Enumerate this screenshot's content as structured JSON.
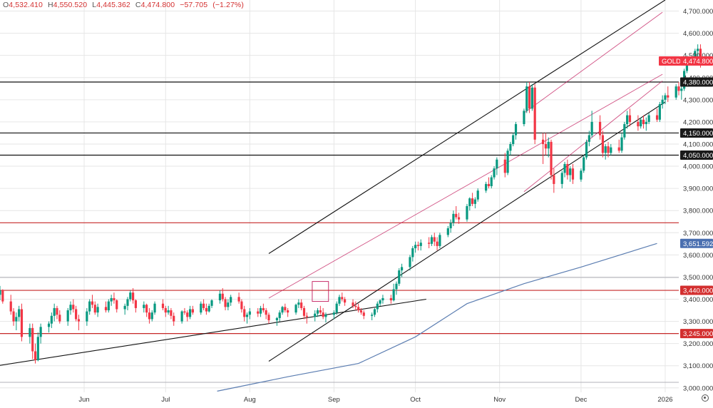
{
  "header": {
    "open_label": "O",
    "open": "4,532.410",
    "high_label": "H",
    "high": "4,550.520",
    "low_label": "L",
    "low": "4,445.362",
    "close_label": "C",
    "close": "4,474.800",
    "change": "−57.705",
    "change_pct": "(−1.27%)"
  },
  "colors": {
    "up": "#089981",
    "down": "#f23645",
    "trend": "#111111",
    "channel": "#c2185b",
    "red_level": "#c62828",
    "black_level": "#111111",
    "ma": "#5b7db1",
    "grid": "#e6e6e6"
  },
  "chart_data": {
    "type": "candlestick",
    "symbol": "GOLD",
    "last_price": 4474.8,
    "last_price_label": "4,474.800",
    "ylim": [
      2980,
      4750
    ],
    "y_ticks": [
      3000,
      3100,
      3200,
      3300,
      3400,
      3500,
      3600,
      3700,
      3800,
      3900,
      4000,
      4100,
      4200,
      4300,
      4400,
      4500,
      4600,
      4700
    ],
    "y_tick_labels": [
      "3,000.000",
      "3,100.000",
      "3,200.000",
      "3,300.000",
      "3,400.000",
      "3,500.000",
      "3,600.000",
      "3,700.000",
      "3,800.000",
      "3,900.000",
      "4,000.000",
      "4,100.000",
      "4,200.000",
      "4,300.000",
      "4,400.000",
      "4,500.000",
      "4,600.000",
      "4,700.000"
    ],
    "x_range": [
      "2025-05-01",
      "2026-01-06"
    ],
    "x_ticks": [
      {
        "label": "Jun",
        "date": "2025-06-01"
      },
      {
        "label": "Jul",
        "date": "2025-07-01"
      },
      {
        "label": "Aug",
        "date": "2025-08-01"
      },
      {
        "label": "Sep",
        "date": "2025-09-01"
      },
      {
        "label": "Oct",
        "date": "2025-10-01"
      },
      {
        "label": "Nov",
        "date": "2025-11-01"
      },
      {
        "label": "Dec",
        "date": "2025-12-01"
      },
      {
        "label": "2026",
        "date": "2026-01-01"
      }
    ],
    "levels": [
      {
        "price": 4380,
        "label": "4,380.000",
        "color": "black"
      },
      {
        "price": 4150,
        "label": "4,150.000",
        "color": "black"
      },
      {
        "price": 4050,
        "label": "4,050.000",
        "color": "black"
      },
      {
        "price": 3745,
        "label": "",
        "color": "red"
      },
      {
        "price": 3498,
        "label": "",
        "color": "gray"
      },
      {
        "price": 3440,
        "label": "3,440.000",
        "color": "red"
      },
      {
        "price": 3245,
        "label": "3,245.000",
        "color": "red"
      },
      {
        "price": 3025,
        "label": "",
        "color": "gray"
      }
    ],
    "ma_label": "3,651.592",
    "ma_points": [
      [
        "2025-07-20",
        2985
      ],
      [
        "2025-08-15",
        3050
      ],
      [
        "2025-09-10",
        3110
      ],
      [
        "2025-10-01",
        3230
      ],
      [
        "2025-10-20",
        3380
      ],
      [
        "2025-11-10",
        3470
      ],
      [
        "2025-12-01",
        3545
      ],
      [
        "2025-12-29",
        3651.6
      ]
    ],
    "trendlines": [
      {
        "kind": "black",
        "from": [
          "2025-04-28",
          3096
        ],
        "to": [
          "2025-10-05",
          3400
        ]
      },
      {
        "kind": "black",
        "from": [
          "2025-08-08",
          3606
        ],
        "to": [
          "2026-01-01",
          4750
        ]
      },
      {
        "kind": "black",
        "from": [
          "2025-08-08",
          3120
        ],
        "to": [
          "2026-01-01",
          4290
        ]
      },
      {
        "kind": "channel",
        "from": [
          "2025-08-08",
          3405
        ],
        "to": [
          "2025-12-31",
          4415
        ]
      },
      {
        "kind": "channel",
        "from": [
          "2025-11-10",
          4240
        ],
        "to": [
          "2025-12-31",
          4695
        ]
      },
      {
        "kind": "channel",
        "from": [
          "2025-11-10",
          3885
        ],
        "to": [
          "2025-12-31",
          4385
        ]
      }
    ],
    "highlight_box": {
      "from": [
        "2025-08-24",
        3390
      ],
      "to": [
        "2025-08-30",
        3480
      ]
    },
    "candles_weekday_start": "2025-05-01",
    "candles": [
      [
        3420,
        3460,
        3395,
        3440
      ],
      [
        3440,
        3445,
        3380,
        3390
      ],
      [
        3390,
        3420,
        3330,
        3345
      ],
      [
        3345,
        3360,
        3280,
        3300
      ],
      [
        3300,
        3340,
        3260,
        3320
      ],
      [
        3320,
        3370,
        3300,
        3355
      ],
      [
        3355,
        3380,
        3210,
        3230
      ],
      [
        3230,
        3290,
        3200,
        3270
      ],
      [
        3270,
        3290,
        3130,
        3165
      ],
      [
        3165,
        3200,
        3110,
        3125
      ],
      [
        3125,
        3250,
        3120,
        3230
      ],
      [
        3230,
        3290,
        3200,
        3275
      ],
      [
        3275,
        3300,
        3250,
        3290
      ],
      [
        3290,
        3340,
        3270,
        3325
      ],
      [
        3325,
        3380,
        3300,
        3360
      ],
      [
        3360,
        3370,
        3310,
        3330
      ],
      [
        3330,
        3350,
        3290,
        3300
      ],
      [
        3300,
        3360,
        3280,
        3350
      ],
      [
        3350,
        3390,
        3330,
        3375
      ],
      [
        3375,
        3400,
        3340,
        3355
      ],
      [
        3355,
        3370,
        3300,
        3310
      ],
      [
        3310,
        3330,
        3260,
        3300
      ],
      [
        3300,
        3360,
        3280,
        3345
      ],
      [
        3345,
        3400,
        3330,
        3390
      ],
      [
        3390,
        3420,
        3360,
        3375
      ],
      [
        3375,
        3390,
        3330,
        3340
      ],
      [
        3340,
        3380,
        3320,
        3365
      ],
      [
        3365,
        3390,
        3340,
        3350
      ],
      [
        3350,
        3400,
        3340,
        3390
      ],
      [
        3390,
        3420,
        3370,
        3405
      ],
      [
        3405,
        3430,
        3380,
        3395
      ],
      [
        3395,
        3400,
        3340,
        3355
      ],
      [
        3355,
        3380,
        3330,
        3370
      ],
      [
        3370,
        3410,
        3350,
        3400
      ],
      [
        3400,
        3440,
        3390,
        3430
      ],
      [
        3430,
        3450,
        3380,
        3395
      ],
      [
        3395,
        3400,
        3340,
        3360
      ],
      [
        3360,
        3390,
        3340,
        3375
      ],
      [
        3375,
        3380,
        3320,
        3340
      ],
      [
        3340,
        3360,
        3290,
        3310
      ],
      [
        3310,
        3350,
        3300,
        3340
      ],
      [
        3340,
        3390,
        3330,
        3380
      ],
      [
        3380,
        3400,
        3350,
        3360
      ],
      [
        3360,
        3370,
        3320,
        3340
      ],
      [
        3340,
        3370,
        3330,
        3350
      ],
      [
        3350,
        3360,
        3310,
        3325
      ],
      [
        3325,
        3340,
        3280,
        3300
      ],
      [
        3300,
        3350,
        3290,
        3345
      ],
      [
        3345,
        3360,
        3330,
        3340
      ],
      [
        3340,
        3350,
        3300,
        3320
      ],
      [
        3320,
        3370,
        3310,
        3355
      ],
      [
        3355,
        3370,
        3330,
        3340
      ],
      [
        3340,
        3390,
        3330,
        3380
      ],
      [
        3380,
        3400,
        3350,
        3360
      ],
      [
        3360,
        3380,
        3330,
        3345
      ],
      [
        3345,
        3380,
        3340,
        3370
      ],
      [
        3370,
        3400,
        3360,
        3395
      ],
      [
        3395,
        3440,
        3380,
        3425
      ],
      [
        3425,
        3450,
        3390,
        3400
      ],
      [
        3400,
        3410,
        3350,
        3365
      ],
      [
        3365,
        3400,
        3350,
        3385
      ],
      [
        3385,
        3420,
        3370,
        3410
      ],
      [
        3410,
        3430,
        3380,
        3390
      ],
      [
        3390,
        3400,
        3340,
        3355
      ],
      [
        3355,
        3370,
        3300,
        3320
      ],
      [
        3320,
        3340,
        3290,
        3330
      ],
      [
        3330,
        3360,
        3310,
        3345
      ],
      [
        3345,
        3360,
        3320,
        3335
      ],
      [
        3335,
        3370,
        3320,
        3360
      ],
      [
        3360,
        3380,
        3340,
        3350
      ],
      [
        3350,
        3360,
        3310,
        3330
      ],
      [
        3330,
        3340,
        3290,
        3305
      ],
      [
        3305,
        3320,
        3280,
        3315
      ],
      [
        3315,
        3350,
        3300,
        3340
      ],
      [
        3340,
        3370,
        3330,
        3365
      ],
      [
        3365,
        3380,
        3340,
        3350
      ],
      [
        3350,
        3360,
        3320,
        3340
      ],
      [
        3340,
        3380,
        3330,
        3375
      ],
      [
        3375,
        3400,
        3360,
        3385
      ],
      [
        3385,
        3400,
        3350,
        3360
      ],
      [
        3360,
        3370,
        3310,
        3325
      ],
      [
        3325,
        3340,
        3290,
        3320
      ],
      [
        3320,
        3350,
        3300,
        3335
      ],
      [
        3335,
        3360,
        3320,
        3350
      ],
      [
        3350,
        3370,
        3330,
        3340
      ],
      [
        3340,
        3360,
        3310,
        3320
      ],
      [
        3320,
        3340,
        3295,
        3330
      ],
      [
        3330,
        3350,
        3310,
        3340
      ],
      [
        3340,
        3390,
        3330,
        3380
      ],
      [
        3380,
        3420,
        3370,
        3410
      ],
      [
        3410,
        3430,
        3390,
        3400
      ],
      [
        3400,
        3410,
        3370,
        3385
      ],
      [
        3385,
        3400,
        3360,
        3370
      ],
      [
        3370,
        3390,
        3350,
        3365
      ],
      [
        3365,
        3380,
        3340,
        3350
      ],
      [
        3350,
        3360,
        3330,
        3340
      ],
      [
        3340,
        3350,
        3310,
        3325
      ],
      [
        3325,
        3340,
        3305,
        3330
      ],
      [
        3330,
        3360,
        3320,
        3355
      ],
      [
        3355,
        3390,
        3340,
        3380
      ],
      [
        3380,
        3400,
        3370,
        3395
      ],
      [
        3395,
        3420,
        3380,
        3405
      ],
      [
        3405,
        3420,
        3380,
        3395
      ],
      [
        3395,
        3470,
        3390,
        3445
      ],
      [
        3445,
        3480,
        3420,
        3470
      ],
      [
        3470,
        3540,
        3460,
        3530
      ],
      [
        3530,
        3560,
        3500,
        3545
      ],
      [
        3545,
        3600,
        3530,
        3590
      ],
      [
        3590,
        3640,
        3570,
        3630
      ],
      [
        3630,
        3660,
        3610,
        3645
      ],
      [
        3645,
        3660,
        3620,
        3640
      ],
      [
        3640,
        3670,
        3620,
        3655
      ],
      [
        3655,
        3680,
        3630,
        3650
      ],
      [
        3650,
        3690,
        3640,
        3680
      ],
      [
        3680,
        3700,
        3640,
        3660
      ],
      [
        3660,
        3680,
        3620,
        3640
      ],
      [
        3640,
        3700,
        3630,
        3690
      ],
      [
        3690,
        3730,
        3680,
        3720
      ],
      [
        3720,
        3760,
        3700,
        3745
      ],
      [
        3745,
        3800,
        3730,
        3785
      ],
      [
        3785,
        3820,
        3760,
        3770
      ],
      [
        3770,
        3790,
        3740,
        3760
      ],
      [
        3760,
        3830,
        3750,
        3820
      ],
      [
        3820,
        3860,
        3800,
        3855
      ],
      [
        3855,
        3880,
        3820,
        3830
      ],
      [
        3830,
        3860,
        3810,
        3850
      ],
      [
        3850,
        3900,
        3840,
        3890
      ],
      [
        3890,
        3930,
        3880,
        3920
      ],
      [
        3920,
        3950,
        3900,
        3910
      ],
      [
        3910,
        3960,
        3900,
        3950
      ],
      [
        3950,
        4000,
        3940,
        3990
      ],
      [
        3990,
        4040,
        3960,
        4030
      ],
      [
        4030,
        4060,
        3950,
        3970
      ],
      [
        3970,
        4080,
        3960,
        4070
      ],
      [
        4070,
        4110,
        4050,
        4100
      ],
      [
        4100,
        4150,
        4090,
        4140
      ],
      [
        4140,
        4200,
        4120,
        4190
      ],
      [
        4190,
        4260,
        4180,
        4250
      ],
      [
        4250,
        4380,
        4240,
        4360
      ],
      [
        4360,
        4380,
        4240,
        4260
      ],
      [
        4260,
        4370,
        4250,
        4355
      ],
      [
        4355,
        4370,
        4100,
        4120
      ],
      [
        4120,
        4150,
        4010,
        4100
      ],
      [
        4100,
        4150,
        4050,
        4080
      ],
      [
        4080,
        4130,
        4040,
        4110
      ],
      [
        4110,
        4120,
        3940,
        3960
      ],
      [
        3960,
        3990,
        3880,
        3920
      ],
      [
        3920,
        3980,
        3900,
        3970
      ],
      [
        3970,
        4020,
        3950,
        4010
      ],
      [
        4010,
        4030,
        3940,
        3960
      ],
      [
        3960,
        4000,
        3930,
        3990
      ],
      [
        3990,
        4010,
        3920,
        3940
      ],
      [
        3940,
        3990,
        3930,
        3980
      ],
      [
        3980,
        4050,
        3970,
        4040
      ],
      [
        4040,
        4120,
        4030,
        4110
      ],
      [
        4110,
        4160,
        4090,
        4140
      ],
      [
        4140,
        4250,
        4130,
        4200
      ],
      [
        4200,
        4230,
        4120,
        4140
      ],
      [
        4140,
        4160,
        4040,
        4060
      ],
      [
        4060,
        4100,
        4030,
        4090
      ],
      [
        4090,
        4110,
        4040,
        4060
      ],
      [
        4060,
        4100,
        4050,
        4085
      ],
      [
        4085,
        4120,
        4060,
        4070
      ],
      [
        4070,
        4150,
        4060,
        4130
      ],
      [
        4130,
        4200,
        4120,
        4190
      ],
      [
        4190,
        4250,
        4170,
        4230
      ],
      [
        4230,
        4260,
        4180,
        4200
      ],
      [
        4200,
        4230,
        4160,
        4180
      ],
      [
        4180,
        4220,
        4170,
        4210
      ],
      [
        4210,
        4230,
        4170,
        4190
      ],
      [
        4190,
        4220,
        4160,
        4200
      ],
      [
        4200,
        4240,
        4190,
        4230
      ],
      [
        4230,
        4260,
        4200,
        4210
      ],
      [
        4210,
        4290,
        4200,
        4280
      ],
      [
        4280,
        4320,
        4260,
        4300
      ],
      [
        4300,
        4330,
        4280,
        4320
      ],
      [
        4320,
        4360,
        4290,
        4310
      ],
      [
        4310,
        4370,
        4300,
        4360
      ],
      [
        4360,
        4380,
        4320,
        4340
      ],
      [
        4340,
        4360,
        4300,
        4350
      ],
      [
        4350,
        4440,
        4340,
        4430
      ],
      [
        4430,
        4500,
        4420,
        4490
      ],
      [
        4490,
        4530,
        4470,
        4520
      ],
      [
        4520,
        4550,
        4480,
        4530
      ],
      [
        4530,
        4550,
        4445,
        4475
      ]
    ]
  }
}
